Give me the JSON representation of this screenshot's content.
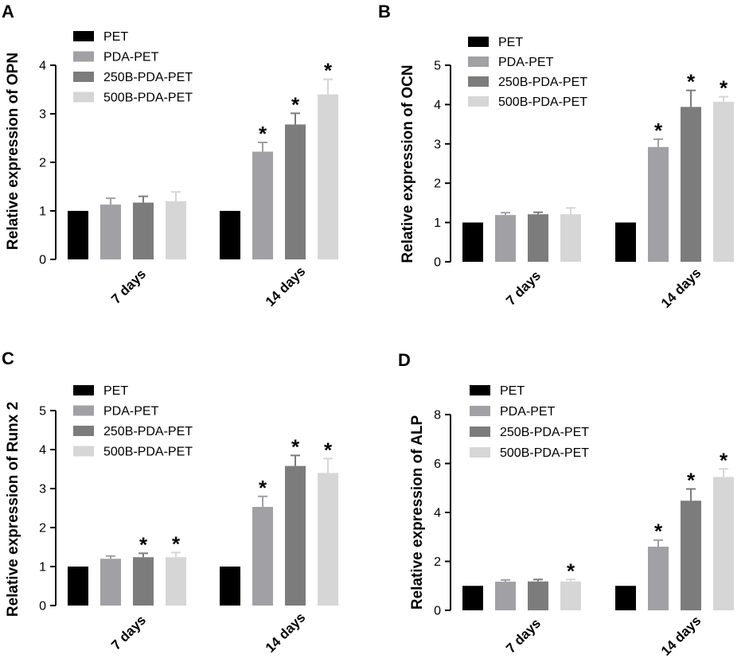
{
  "colors": {
    "PET": "#000000",
    "PDA-PET": "#a0a0a5",
    "250B-PDA-PET": "#7c7c7c",
    "500B-PDA-PET": "#d6d6d6"
  },
  "significance_marker": "*",
  "chart_data": [
    {
      "panel": "A",
      "type": "bar",
      "ylabel": "Relative expression of OPN",
      "ylim": [
        0,
        4
      ],
      "yticks": [
        0,
        1,
        2,
        3,
        4
      ],
      "categories": [
        "7 days",
        "14 days"
      ],
      "series": [
        {
          "name": "PET",
          "values": [
            1.0,
            1.0
          ],
          "errors": [
            0.0,
            0.0
          ],
          "significant": [
            false,
            false
          ]
        },
        {
          "name": "PDA-PET",
          "values": [
            1.13,
            2.22
          ],
          "errors": [
            0.13,
            0.19
          ],
          "significant": [
            false,
            true
          ]
        },
        {
          "name": "250B-PDA-PET",
          "values": [
            1.17,
            2.78
          ],
          "errors": [
            0.13,
            0.23
          ],
          "significant": [
            false,
            true
          ]
        },
        {
          "name": "500B-PDA-PET",
          "values": [
            1.2,
            3.4
          ],
          "errors": [
            0.19,
            0.31
          ],
          "significant": [
            false,
            true
          ]
        }
      ]
    },
    {
      "panel": "B",
      "type": "bar",
      "ylabel": "Relative expression of OCN",
      "ylim": [
        0,
        5
      ],
      "yticks": [
        0,
        1,
        2,
        3,
        4,
        5
      ],
      "categories": [
        "7 days",
        "14 days"
      ],
      "series": [
        {
          "name": "PET",
          "values": [
            1.0,
            1.0
          ],
          "errors": [
            0.0,
            0.0
          ],
          "significant": [
            false,
            false
          ]
        },
        {
          "name": "PDA-PET",
          "values": [
            1.19,
            2.92
          ],
          "errors": [
            0.06,
            0.2
          ],
          "significant": [
            false,
            true
          ]
        },
        {
          "name": "250B-PDA-PET",
          "values": [
            1.21,
            3.94
          ],
          "errors": [
            0.05,
            0.42
          ],
          "significant": [
            false,
            true
          ]
        },
        {
          "name": "500B-PDA-PET",
          "values": [
            1.21,
            4.07
          ],
          "errors": [
            0.16,
            0.13
          ],
          "significant": [
            false,
            true
          ]
        }
      ]
    },
    {
      "panel": "C",
      "type": "bar",
      "ylabel": "Relative expression of Runx 2",
      "ylim": [
        0,
        5
      ],
      "yticks": [
        0,
        1,
        2,
        3,
        4,
        5
      ],
      "categories": [
        "7 days",
        "14 days"
      ],
      "series": [
        {
          "name": "PET",
          "values": [
            1.0,
            1.0
          ],
          "errors": [
            0.0,
            0.0
          ],
          "significant": [
            false,
            false
          ]
        },
        {
          "name": "PDA-PET",
          "values": [
            1.2,
            2.53
          ],
          "errors": [
            0.07,
            0.27
          ],
          "significant": [
            false,
            true
          ]
        },
        {
          "name": "250B-PDA-PET",
          "values": [
            1.24,
            3.58
          ],
          "errors": [
            0.1,
            0.27
          ],
          "significant": [
            true,
            true
          ]
        },
        {
          "name": "500B-PDA-PET",
          "values": [
            1.24,
            3.4
          ],
          "errors": [
            0.12,
            0.37
          ],
          "significant": [
            true,
            true
          ]
        }
      ]
    },
    {
      "panel": "D",
      "type": "bar",
      "ylabel": "Relative expression of ALP",
      "ylim": [
        0,
        8
      ],
      "yticks": [
        0,
        2,
        4,
        6,
        8
      ],
      "categories": [
        "7 days",
        "14 days"
      ],
      "series": [
        {
          "name": "PET",
          "values": [
            1.0,
            1.0
          ],
          "errors": [
            0.0,
            0.0
          ],
          "significant": [
            false,
            false
          ]
        },
        {
          "name": "PDA-PET",
          "values": [
            1.17,
            2.6
          ],
          "errors": [
            0.07,
            0.27
          ],
          "significant": [
            false,
            true
          ]
        },
        {
          "name": "250B-PDA-PET",
          "values": [
            1.18,
            4.48
          ],
          "errors": [
            0.08,
            0.48
          ],
          "significant": [
            false,
            true
          ]
        },
        {
          "name": "500B-PDA-PET",
          "values": [
            1.18,
            5.45
          ],
          "errors": [
            0.08,
            0.33
          ],
          "significant": [
            true,
            true
          ]
        }
      ]
    }
  ]
}
